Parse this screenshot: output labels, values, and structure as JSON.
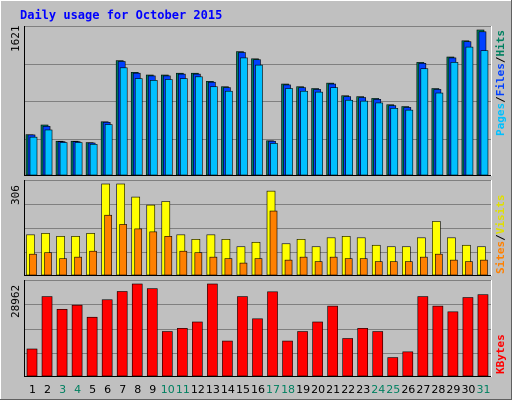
{
  "title": "Daily usage for October 2015",
  "colors": {
    "background": "#c0c0c0",
    "title": "#0000ff",
    "pages": "#00c0ff",
    "hits": "#008060",
    "files": "#0040ff",
    "sites": "#ff8000",
    "visits": "#ffff00",
    "kbytes": "#ff0000",
    "weekend": "#008060",
    "weekday": "#000000"
  },
  "chart_data": [
    {
      "type": "bar",
      "title": "Daily usage for October 2015",
      "panel": "hits-files-pages",
      "ymax_label": "1621",
      "ylim": [
        0,
        1621
      ],
      "legend": [
        "Pages",
        "/",
        "Files",
        "/",
        "Hits"
      ],
      "legend_placement": "right",
      "categories": [
        "1",
        "2",
        "3",
        "4",
        "5",
        "6",
        "7",
        "8",
        "9",
        "10",
        "11",
        "12",
        "13",
        "14",
        "15",
        "16",
        "17",
        "18",
        "19",
        "20",
        "21",
        "22",
        "23",
        "24",
        "25",
        "26",
        "27",
        "28",
        "29",
        "30",
        "31"
      ],
      "series": [
        {
          "name": "Hits",
          "values": [
            448,
            555,
            375,
            375,
            360,
            591,
            1270,
            1140,
            1110,
            1110,
            1130,
            1130,
            1040,
            980,
            1370,
            1290,
            380,
            1010,
            980,
            960,
            1020,
            880,
            870,
            850,
            780,
            760,
            1250,
            960,
            1310,
            1490,
            1610
          ]
        },
        {
          "name": "Files",
          "values": [
            445,
            540,
            370,
            370,
            355,
            585,
            1260,
            1130,
            1100,
            1100,
            1120,
            1120,
            1030,
            970,
            1360,
            1280,
            375,
            1000,
            970,
            950,
            1010,
            870,
            860,
            840,
            770,
            750,
            1240,
            950,
            1300,
            1480,
            1590
          ]
        },
        {
          "name": "Pages",
          "values": [
            420,
            500,
            360,
            360,
            340,
            560,
            1190,
            1070,
            1050,
            1060,
            1070,
            1090,
            980,
            930,
            1300,
            1220,
            350,
            960,
            930,
            920,
            970,
            830,
            820,
            800,
            740,
            720,
            1180,
            910,
            1250,
            1420,
            1380
          ]
        }
      ]
    },
    {
      "type": "bar",
      "panel": "visits-sites",
      "ymax_label": "306",
      "ylim": [
        0,
        306
      ],
      "legend": [
        "Sites",
        "/",
        "Visits"
      ],
      "legend_placement": "right",
      "categories": [
        "1",
        "2",
        "3",
        "4",
        "5",
        "6",
        "7",
        "8",
        "9",
        "10",
        "11",
        "12",
        "13",
        "14",
        "15",
        "16",
        "17",
        "18",
        "19",
        "20",
        "21",
        "22",
        "23",
        "24",
        "25",
        "26",
        "27",
        "28",
        "29",
        "30",
        "31"
      ],
      "series": [
        {
          "name": "Visits",
          "values": [
            135,
            140,
            130,
            130,
            140,
            306,
            306,
            262,
            235,
            247,
            135,
            120,
            135,
            120,
            95,
            110,
            282,
            105,
            120,
            95,
            125,
            130,
            125,
            100,
            95,
            95,
            125,
            180,
            125,
            100,
            95
          ]
        },
        {
          "name": "Sites",
          "values": [
            70,
            75,
            55,
            60,
            80,
            201,
            170,
            155,
            145,
            130,
            80,
            75,
            60,
            55,
            40,
            55,
            215,
            50,
            60,
            45,
            60,
            55,
            55,
            45,
            45,
            45,
            60,
            70,
            50,
            45,
            50
          ]
        }
      ]
    },
    {
      "type": "bar",
      "panel": "kbytes",
      "ymax_label": "28962",
      "ylim": [
        0,
        28962
      ],
      "legend": [
        "KBytes"
      ],
      "legend_placement": "right",
      "categories": [
        "1",
        "2",
        "3",
        "4",
        "5",
        "6",
        "7",
        "8",
        "9",
        "10",
        "11",
        "12",
        "13",
        "14",
        "15",
        "16",
        "17",
        "18",
        "19",
        "20",
        "21",
        "22",
        "23",
        "24",
        "25",
        "26",
        "27",
        "28",
        "29",
        "30",
        "31"
      ],
      "series": [
        {
          "name": "KBytes",
          "values": [
            8500,
            25000,
            21000,
            22300,
            18500,
            24000,
            26600,
            28962,
            27500,
            14000,
            15000,
            17000,
            28962,
            11000,
            25000,
            18000,
            26500,
            11000,
            14000,
            17000,
            22000,
            11800,
            15000,
            14000,
            5800,
            7600,
            25000,
            22000,
            20200,
            24700,
            25600
          ]
        }
      ]
    }
  ],
  "x_labels": [
    "1",
    "2",
    "3",
    "4",
    "5",
    "6",
    "7",
    "8",
    "9",
    "10",
    "11",
    "12",
    "13",
    "14",
    "15",
    "16",
    "17",
    "18",
    "19",
    "20",
    "21",
    "22",
    "23",
    "24",
    "25",
    "26",
    "27",
    "28",
    "29",
    "30",
    "31"
  ],
  "weekend_days": [
    "3",
    "4",
    "10",
    "11",
    "17",
    "18",
    "24",
    "25",
    "31"
  ]
}
